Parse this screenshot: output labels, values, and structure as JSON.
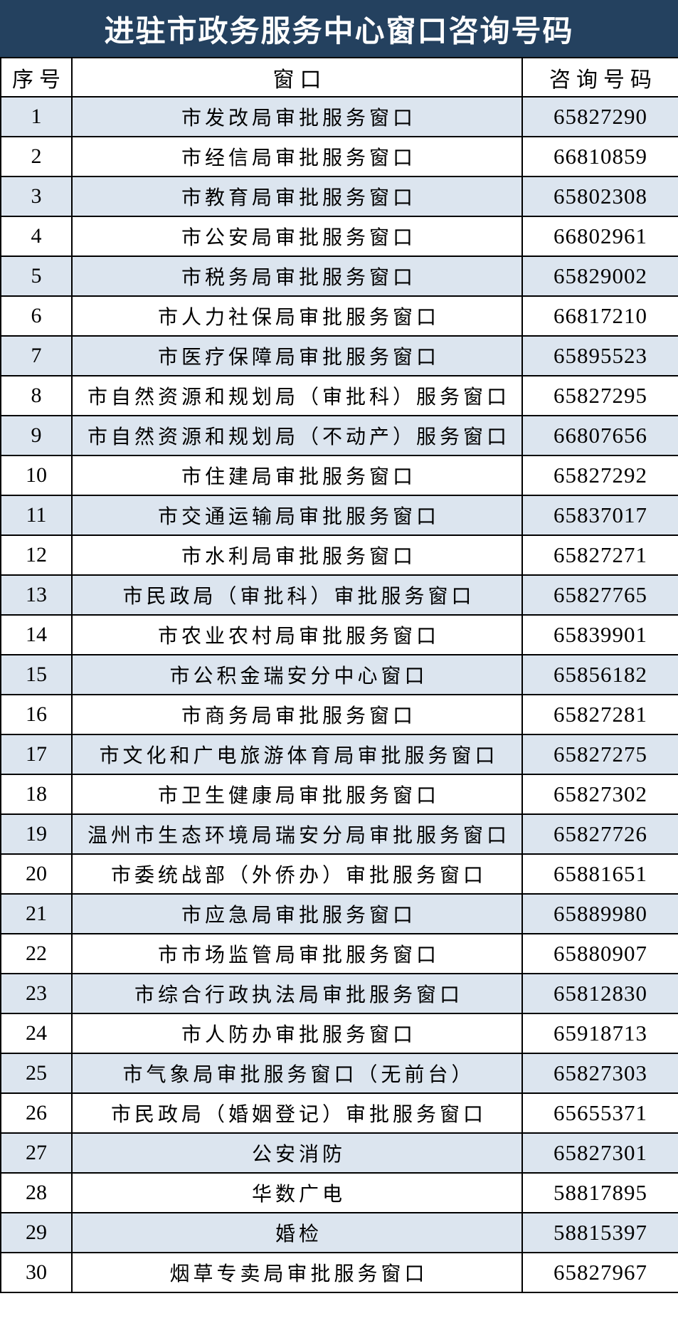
{
  "page_title": "进驻市政务服务中心窗口咨询号码",
  "colors": {
    "title_bg": "#24415F",
    "title_text": "#FFFFFF",
    "row_alt": "#DCE5EF",
    "border": "#000000"
  },
  "table": {
    "headers": {
      "index": "序号",
      "window": "窗口",
      "phone": "咨询号码"
    },
    "rows": [
      {
        "no": "1",
        "window": "市发改局审批服务窗口",
        "phone": "65827290"
      },
      {
        "no": "2",
        "window": "市经信局审批服务窗口",
        "phone": "66810859"
      },
      {
        "no": "3",
        "window": "市教育局审批服务窗口",
        "phone": "65802308"
      },
      {
        "no": "4",
        "window": "市公安局审批服务窗口",
        "phone": "66802961"
      },
      {
        "no": "5",
        "window": "市税务局审批服务窗口",
        "phone": "65829002"
      },
      {
        "no": "6",
        "window": "市人力社保局审批服务窗口",
        "phone": "66817210"
      },
      {
        "no": "7",
        "window": "市医疗保障局审批服务窗口",
        "phone": "65895523"
      },
      {
        "no": "8",
        "window": "市自然资源和规划局（审批科）服务窗口",
        "phone": "65827295"
      },
      {
        "no": "9",
        "window": "市自然资源和规划局（不动产）服务窗口",
        "phone": "66807656"
      },
      {
        "no": "10",
        "window": "市住建局审批服务窗口",
        "phone": "65827292"
      },
      {
        "no": "11",
        "window": "市交通运输局审批服务窗口",
        "phone": "65837017"
      },
      {
        "no": "12",
        "window": "市水利局审批服务窗口",
        "phone": "65827271"
      },
      {
        "no": "13",
        "window": "市民政局（审批科）审批服务窗口",
        "phone": "65827765"
      },
      {
        "no": "14",
        "window": "市农业农村局审批服务窗口",
        "phone": "65839901"
      },
      {
        "no": "15",
        "window": "市公积金瑞安分中心窗口",
        "phone": "65856182"
      },
      {
        "no": "16",
        "window": "市商务局审批服务窗口",
        "phone": "65827281"
      },
      {
        "no": "17",
        "window": "市文化和广电旅游体育局审批服务窗口",
        "phone": "65827275"
      },
      {
        "no": "18",
        "window": "市卫生健康局审批服务窗口",
        "phone": "65827302"
      },
      {
        "no": "19",
        "window": "温州市生态环境局瑞安分局审批服务窗口",
        "phone": "65827726"
      },
      {
        "no": "20",
        "window": "市委统战部（外侨办）审批服务窗口",
        "phone": "65881651"
      },
      {
        "no": "21",
        "window": "市应急局审批服务窗口",
        "phone": "65889980"
      },
      {
        "no": "22",
        "window": "市市场监管局审批服务窗口",
        "phone": "65880907"
      },
      {
        "no": "23",
        "window": "市综合行政执法局审批服务窗口",
        "phone": "65812830"
      },
      {
        "no": "24",
        "window": "市人防办审批服务窗口",
        "phone": "65918713"
      },
      {
        "no": "25",
        "window": "市气象局审批服务窗口（无前台）",
        "phone": "65827303"
      },
      {
        "no": "26",
        "window": "市民政局（婚姻登记）审批服务窗口",
        "phone": "65655371"
      },
      {
        "no": "27",
        "window": "公安消防",
        "phone": "65827301"
      },
      {
        "no": "28",
        "window": "华数广电",
        "phone": "58817895"
      },
      {
        "no": "29",
        "window": "婚检",
        "phone": "58815397"
      },
      {
        "no": "30",
        "window": "烟草专卖局审批服务窗口",
        "phone": "65827967"
      }
    ]
  }
}
